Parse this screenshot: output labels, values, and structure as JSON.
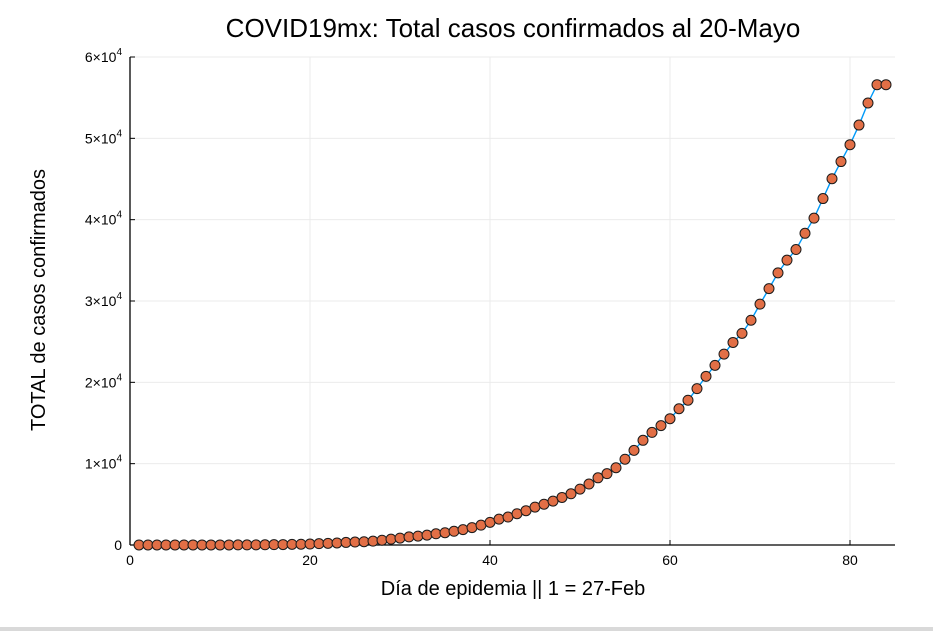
{
  "chart_data": {
    "type": "scatter",
    "title": "COVID19mx: Total casos confirmados al 20-Mayo",
    "xlabel": "Día de epidemia || 1 = 27-Feb",
    "ylabel": "TOTAL de casos confirmados",
    "xlim": [
      0,
      85
    ],
    "ylim": [
      0,
      60000
    ],
    "x_ticks": [
      0,
      20,
      40,
      60,
      80
    ],
    "y_ticks": [
      {
        "value": 0,
        "label": "0",
        "exp": ""
      },
      {
        "value": 10000,
        "label": "1×10",
        "exp": "4"
      },
      {
        "value": 20000,
        "label": "2×10",
        "exp": "4"
      },
      {
        "value": 30000,
        "label": "3×10",
        "exp": "4"
      },
      {
        "value": 40000,
        "label": "4×10",
        "exp": "4"
      },
      {
        "value": 50000,
        "label": "5×10",
        "exp": "4"
      },
      {
        "value": 60000,
        "label": "6×10",
        "exp": "4"
      }
    ],
    "grid": true,
    "legend": "none",
    "series": [
      {
        "x": [
          1,
          2,
          3,
          4,
          5,
          6,
          7,
          8,
          9,
          10,
          11,
          12,
          13,
          14,
          15,
          16,
          17,
          18,
          19,
          20,
          21,
          22,
          23,
          24,
          25,
          26,
          27,
          28,
          29,
          30,
          31,
          32,
          33,
          34,
          35,
          36,
          37,
          38,
          39,
          40,
          41,
          42,
          43,
          44,
          45,
          46,
          47,
          48,
          49,
          50,
          51,
          52,
          53,
          54,
          55,
          56,
          57,
          58,
          59,
          60,
          61,
          62,
          63,
          64,
          65,
          66,
          67,
          68,
          69,
          70,
          71,
          72,
          73,
          74,
          75,
          76,
          77,
          78,
          79,
          80,
          81,
          82,
          83,
          84
        ],
        "y": [
          1,
          2,
          4,
          5,
          5,
          5,
          6,
          7,
          7,
          7,
          7,
          11,
          12,
          15,
          26,
          41,
          53,
          82,
          93,
          118,
          164,
          203,
          251,
          316,
          367,
          405,
          475,
          585,
          717,
          848,
          993,
          1094,
          1215,
          1378,
          1510,
          1688,
          1890,
          2143,
          2439,
          2785,
          3181,
          3441,
          3844,
          4219,
          4661,
          5014,
          5399,
          5847,
          6297,
          6875,
          7497,
          8261,
          8772,
          9501,
          10544,
          11633,
          12872,
          13842,
          14677,
          15529,
          16752,
          17799,
          19224,
          20739,
          22088,
          23471,
          24905,
          26025,
          27634,
          29616,
          31522,
          33460,
          35022,
          36327,
          38324,
          40186,
          42595,
          45032,
          47144,
          49219,
          51633,
          54346,
          56594,
          56594
        ]
      }
    ],
    "colors": {
      "marker_fill": "#e26f46",
      "marker_stroke": "#1a1a1a",
      "line": "#009af9",
      "grid": "#ebebeb",
      "axis": "#000000"
    }
  }
}
